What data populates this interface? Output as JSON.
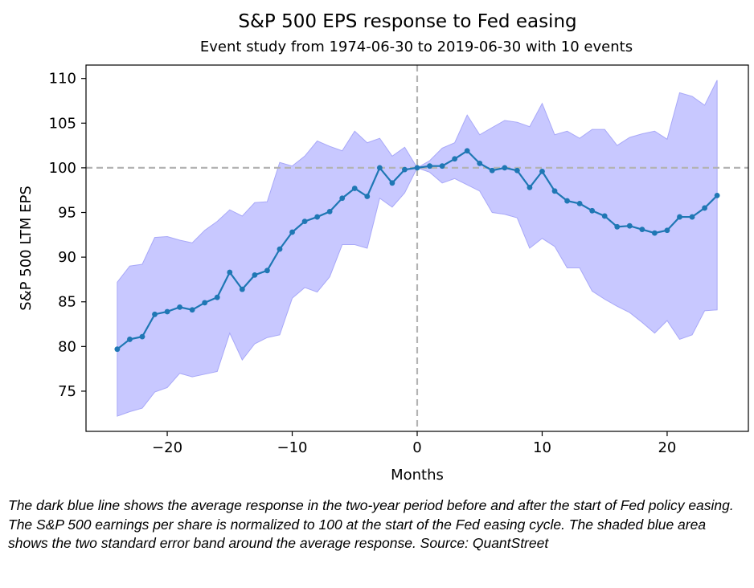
{
  "chart_data": {
    "type": "line",
    "title": "S&P 500 EPS response to Fed easing",
    "subtitle": "Event study from 1974-06-30 to 2019-06-30 with 10 events",
    "xlabel": "Months",
    "ylabel": "S&P 500 LTM EPS",
    "xlim": [
      -26.5,
      26.5
    ],
    "ylim": [
      70.5,
      111.5
    ],
    "xticks": [
      -20,
      -10,
      0,
      10,
      20
    ],
    "xtick_labels": [
      "−20",
      "−10",
      "0",
      "10",
      "20"
    ],
    "yticks": [
      75,
      80,
      85,
      90,
      95,
      100,
      105,
      110
    ],
    "ytick_labels": [
      "75",
      "80",
      "85",
      "90",
      "95",
      "100",
      "105",
      "110"
    ],
    "reference_lines": {
      "x": 0,
      "y": 100
    },
    "grid": false,
    "colors": {
      "line": "#1f77b4",
      "band_fill": "#c8c8ff",
      "band_edge": "#a8a8f8",
      "reference": "#b3b3b3"
    },
    "x": [
      -24,
      -23,
      -22,
      -21,
      -20,
      -19,
      -18,
      -17,
      -16,
      -15,
      -14,
      -13,
      -12,
      -11,
      -10,
      -9,
      -8,
      -7,
      -6,
      -5,
      -4,
      -3,
      -2,
      -1,
      0,
      1,
      2,
      3,
      4,
      5,
      6,
      7,
      8,
      9,
      10,
      11,
      12,
      13,
      14,
      15,
      16,
      17,
      18,
      19,
      20,
      21,
      22,
      23,
      24
    ],
    "series": [
      {
        "values": [
          79.7,
          80.8,
          81.1,
          83.6,
          83.9,
          84.4,
          84.1,
          84.9,
          85.5,
          88.3,
          86.4,
          88.0,
          88.5,
          90.9,
          92.8,
          94.0,
          94.5,
          95.1,
          96.6,
          97.7,
          96.8,
          100.0,
          98.3,
          99.8,
          100.0,
          100.2,
          100.2,
          101.0,
          101.9,
          100.5,
          99.7,
          100.0,
          99.7,
          97.8,
          99.6,
          97.4,
          96.3,
          96.0,
          95.2,
          94.6,
          93.4,
          93.5,
          93.1,
          92.7,
          93.0,
          94.5,
          94.5,
          95.5,
          96.9
        ]
      }
    ],
    "band_upper": [
      87.2,
      89.0,
      89.2,
      92.2,
      92.3,
      91.9,
      91.6,
      93.0,
      94.0,
      95.3,
      94.6,
      96.1,
      96.2,
      100.6,
      100.2,
      101.3,
      103.0,
      102.4,
      101.9,
      104.1,
      102.8,
      103.3,
      101.3,
      102.3,
      100.0,
      100.8,
      102.2,
      102.8,
      105.9,
      103.7,
      104.5,
      105.3,
      105.1,
      104.6,
      107.2,
      103.7,
      104.1,
      103.3,
      104.3,
      104.3,
      102.5,
      103.4,
      103.8,
      104.1,
      103.2,
      108.4,
      108.0,
      107.0,
      109.8
    ],
    "band_lower": [
      72.2,
      72.7,
      73.1,
      74.9,
      75.4,
      77.0,
      76.6,
      76.9,
      77.2,
      81.5,
      78.5,
      80.3,
      81.0,
      81.3,
      85.4,
      86.6,
      86.1,
      87.8,
      91.4,
      91.4,
      91.0,
      96.6,
      95.6,
      97.2,
      100.0,
      99.5,
      98.3,
      98.8,
      98.1,
      97.4,
      95.0,
      94.8,
      94.4,
      91.0,
      92.1,
      91.2,
      88.8,
      88.8,
      86.2,
      85.3,
      84.5,
      83.8,
      82.7,
      81.5,
      82.9,
      80.8,
      81.3,
      84.0,
      84.1
    ]
  },
  "caption": "The dark blue line shows the average response in the two-year period before and after the start of Fed policy easing. The S&P 500 earnings per share is normalized to 100 at the start of the Fed easing cycle. The shaded blue area shows the two standard error band around the average response. Source: QuantStreet"
}
